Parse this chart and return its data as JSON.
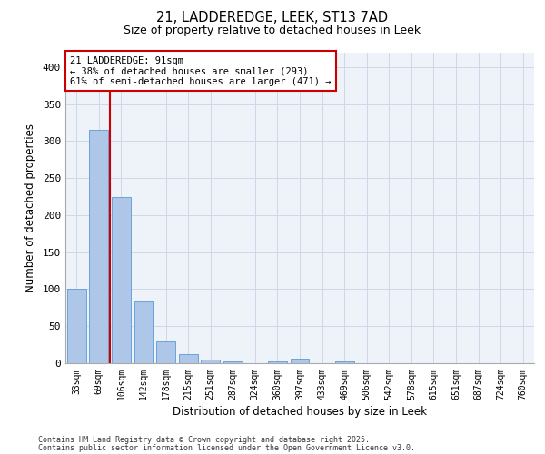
{
  "title1": "21, LADDEREDGE, LEEK, ST13 7AD",
  "title2": "Size of property relative to detached houses in Leek",
  "xlabel": "Distribution of detached houses by size in Leek",
  "ylabel": "Number of detached properties",
  "categories": [
    "33sqm",
    "69sqm",
    "106sqm",
    "142sqm",
    "178sqm",
    "215sqm",
    "251sqm",
    "287sqm",
    "324sqm",
    "360sqm",
    "397sqm",
    "433sqm",
    "469sqm",
    "506sqm",
    "542sqm",
    "578sqm",
    "615sqm",
    "651sqm",
    "687sqm",
    "724sqm",
    "760sqm"
  ],
  "values": [
    100,
    315,
    225,
    83,
    29,
    12,
    5,
    2,
    0,
    2,
    6,
    0,
    2,
    0,
    0,
    0,
    0,
    0,
    0,
    0,
    0
  ],
  "bar_color": "#aec6e8",
  "bar_edge_color": "#5b9bd5",
  "grid_color": "#d0d8e8",
  "background_color": "#eef2f9",
  "vline_color": "#cc0000",
  "annotation_text": "21 LADDEREDGE: 91sqm\n← 38% of detached houses are smaller (293)\n61% of semi-detached houses are larger (471) →",
  "annotation_box_color": "#ffffff",
  "annotation_box_edge": "#cc0000",
  "ylim": [
    0,
    420
  ],
  "yticks": [
    0,
    50,
    100,
    150,
    200,
    250,
    300,
    350,
    400
  ],
  "footer1": "Contains HM Land Registry data © Crown copyright and database right 2025.",
  "footer2": "Contains public sector information licensed under the Open Government Licence v3.0."
}
